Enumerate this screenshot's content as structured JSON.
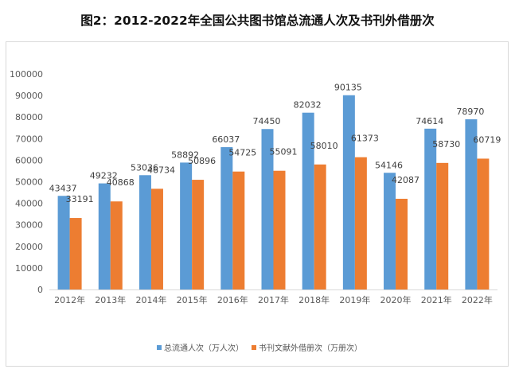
{
  "chart_data": {
    "type": "bar",
    "title": "图2：2012-2022年全国公共图书馆总流通人次及书刊外借册次",
    "xlabel": "",
    "ylabel": "",
    "ylim": [
      0,
      100000
    ],
    "yticks": [
      0,
      10000,
      20000,
      30000,
      40000,
      50000,
      60000,
      70000,
      80000,
      90000,
      100000
    ],
    "grid": false,
    "legend_position": "bottom",
    "categories": [
      "2012年",
      "2013年",
      "2014年",
      "2015年",
      "2016年",
      "2017年",
      "2018年",
      "2019年",
      "2020年",
      "2021年",
      "2022年"
    ],
    "series": [
      {
        "name": "总流通人次（万人次）",
        "color": "#5b9bd5",
        "values": [
          43437,
          49232,
          53036,
          58892,
          66037,
          74450,
          82032,
          90135,
          54146,
          74614,
          78970
        ]
      },
      {
        "name": "书刊文献外借册次（万册次）",
        "color": "#ed7d31",
        "values": [
          33191,
          40868,
          46734,
          50896,
          54725,
          55091,
          58010,
          61373,
          42087,
          58730,
          60719
        ]
      }
    ]
  }
}
